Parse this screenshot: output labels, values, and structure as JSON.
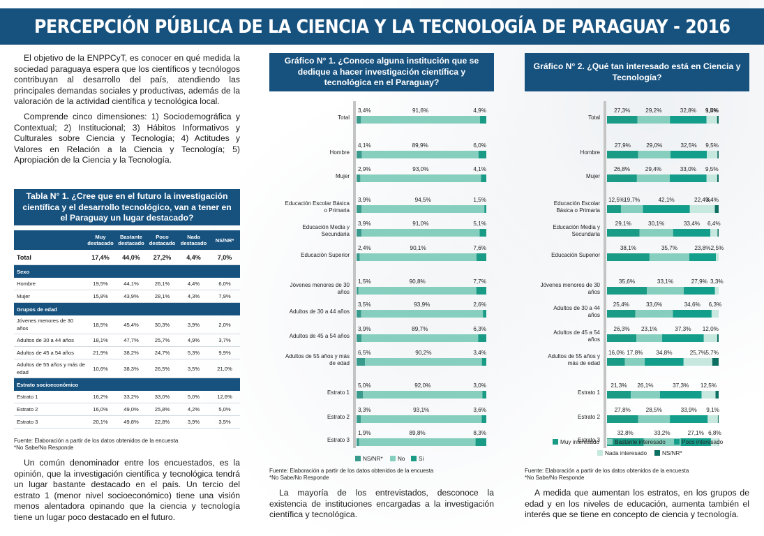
{
  "header": {
    "title": "PERCEPCIÓN PÚBLICA DE LA CIENCIA Y LA TECNOLOGÍA DE PARAGUAY - 2016"
  },
  "intro": {
    "p1": "El objetivo de la ENPPCyT, es conocer en qué medida la sociedad paraguaya espera que los científicos y tecnólogos contribuyan al desarrollo del país, atendiendo las principales demandas sociales y productivas, además de la valoración de la actividad científica y tecnológica local.",
    "p2": "Comprende cinco dimensiones: 1) Sociodemográfica y Contextual; 2) Institucional; 3) Hábitos Informativos y Culturales sobre Ciencia y Tecnología; 4) Actitudes y Valores en Relación a la Ciencia y Tecnología; 5) Apropiación de la Ciencia y la Tecnología."
  },
  "table": {
    "title": "Tabla  N° 1. ¿Cree que en el futuro la investigación científica y el desarrollo tecnológico, van a tener en el Paraguay un lugar destacado?",
    "headers": [
      "Muy destacado",
      "Bastante destacado",
      "Poco destacado",
      "Nada destacado",
      "NS/NR*"
    ],
    "total": {
      "label": "Total",
      "values": [
        "17,4%",
        "44,0%",
        "27,2%",
        "4,4%",
        "7,0%"
      ]
    },
    "sections": [
      {
        "name": "Sexo",
        "rows": [
          {
            "label": "Hombre",
            "values": [
              "19,5%",
              "44,1%",
              "26,1%",
              "4,4%",
              "6,0%"
            ]
          },
          {
            "label": "Mujer",
            "values": [
              "15,8%",
              "43,9%",
              "28,1%",
              "4,3%",
              "7,9%"
            ]
          }
        ]
      },
      {
        "name": "Grupos de edad",
        "rows": [
          {
            "label": "Jóvenes menores de 30 años",
            "values": [
              "18,5%",
              "45,4%",
              "30,3%",
              "3,9%",
              "2,0%"
            ]
          },
          {
            "label": "Adultos de 30 a 44 años",
            "values": [
              "18,1%",
              "47,7%",
              "25,7%",
              "4,9%",
              "3,7%"
            ]
          },
          {
            "label": "Adultos de 45 a 54 años",
            "values": [
              "21,9%",
              "38,2%",
              "24,7%",
              "5,3%",
              "9,9%"
            ]
          },
          {
            "label": "Adultos de 55 años y más de edad",
            "values": [
              "10,6%",
              "38,3%",
              "26,5%",
              "3,5%",
              "21,0%"
            ]
          }
        ]
      },
      {
        "name": "Estrato socioeconómico",
        "rows": [
          {
            "label": "Estrato 1",
            "values": [
              "16,2%",
              "33,2%",
              "33,0%",
              "5,0%",
              "12,6%"
            ]
          },
          {
            "label": "Estrato 2",
            "values": [
              "16,0%",
              "49,0%",
              "25,8%",
              "4,2%",
              "5,0%"
            ]
          },
          {
            "label": "Estrato 3",
            "values": [
              "20,1%",
              "49,8%",
              "22,8%",
              "3,9%",
              "3,5%"
            ]
          }
        ]
      }
    ],
    "source": "Fuente: Elaboración a partir de los datos obtenidos de la encuesta",
    "note": "*No Sabe/No Responde"
  },
  "text_bottom1": "Un común denominador entre los encuestados, es la opinión, que la investigación científica y tecnológica tendrá un lugar bastante destacado en el país. Un tercio del estrato 1 (menor nivel socioeconómico) tiene una visión menos alentadora opinando que la ciencia y tecnología tiene un lugar poco destacado en el futuro.",
  "text_bottom2": "La mayoría de los entrevistados, desconoce la existencia de instituciones encargadas a la investigación científica y tecnológica.",
  "text_bottom3": "A medida que aumentan los estratos, en los grupos de edad y en los niveles de educación, aumenta también el interés que se tiene en concepto de ciencia y tecnología.",
  "chart1_source": "Fuente: Elaboración a partir de los datos obtenidos de la encuesta",
  "chart1_note": "*No Sabe/No Responde",
  "chart2_source": "Fuente: Elaboración a partir de los datos obtenidos de la encuesta",
  "chart2_note": "*No Sabe/No Responde",
  "chart_data": [
    {
      "type": "bar",
      "stacked": true,
      "orientation": "horizontal",
      "title": "Gráfico  N° 1. ¿Conoce alguna institución que se dedique a hacer investigación científica y tecnológica en el Paraguay?",
      "categories": [
        "Total",
        "Hombre",
        "Mujer",
        "Educación Escolar Básica o Primaria",
        "Educación Media y Secundaria",
        "Educación Superior",
        "Jóvenes menores de 30 años",
        "Adultos de 30 a 44 años",
        "Adultos de 45 a 54 años",
        "Adultos de 55 años y más de edad",
        "Estrato 1",
        "Estrato 2",
        "Estrato 3"
      ],
      "series": [
        {
          "name": "NS/NR*",
          "values": [
            3.4,
            4.1,
            2.9,
            3.9,
            3.9,
            2.4,
            1.5,
            3.5,
            3.9,
            6.5,
            5.0,
            3.3,
            1.9
          ],
          "labels": [
            "3,4%",
            "4,1%",
            "2,9%",
            "3,9%",
            "3,9%",
            "2,4%",
            "1,5%",
            "3,5%",
            "3,9%",
            "6,5%",
            "5,0%",
            "3,3%",
            "1,9%"
          ],
          "color": "#3a9a8c"
        },
        {
          "name": "No",
          "values": [
            91.6,
            89.9,
            93.0,
            94.5,
            91.0,
            90.1,
            90.8,
            93.9,
            89.7,
            90.2,
            92.0,
            93.1,
            89.8
          ],
          "labels": [
            "91,6%",
            "89,9%",
            "93,0%",
            "94,5%",
            "91,0%",
            "90,1%",
            "90,8%",
            "93,9%",
            "89,7%",
            "90,2%",
            "92,0%",
            "93,1%",
            "89,8%"
          ],
          "color": "#86cfbe"
        },
        {
          "name": "Si",
          "values": [
            4.9,
            6.0,
            4.1,
            1.5,
            5.1,
            7.6,
            7.7,
            2.6,
            6.3,
            3.4,
            3.0,
            3.6,
            8.3
          ],
          "labels": [
            "4,9%",
            "6,0%",
            "4,1%",
            "1,5%",
            "5,1%",
            "7,6%",
            "7,7%",
            "2,6%",
            "6,3%",
            "3,4%",
            "3,0%",
            "3,6%",
            "8,3%"
          ],
          "color": "#1a9b86"
        }
      ],
      "legend": "bottom"
    },
    {
      "type": "bar",
      "stacked": true,
      "orientation": "horizontal",
      "title": "Gráfico  N° 2. ¿Qué tan interesado está en Ciencia y Tecnología?",
      "categories": [
        "Total",
        "Hombre",
        "Mujer",
        "Educación Escolar Básica o Primaria",
        "Educación Media y Secundaria",
        "Educación Superior",
        "Jóvenes menores de 30 años",
        "Adultos de 30 a 44 años",
        "Adultos de 45 a 54 años",
        "Adultos de 55 años y más de edad",
        "Estrato 1",
        "Estrato 2",
        "Estrato 3"
      ],
      "series": [
        {
          "name": "Muy interesado",
          "values": [
            27.3,
            27.9,
            26.8,
            12.5,
            29.1,
            38.1,
            35.6,
            25.4,
            26.3,
            16.0,
            21.3,
            27.8,
            32.8
          ],
          "labels": [
            "27,3%",
            "27,9%",
            "26,8%",
            "12,5%",
            "29,1%",
            "38,1%",
            "35,6%",
            "25,4%",
            "26,3%",
            "16,0%",
            "21,3%",
            "27,8%",
            "32,8%"
          ],
          "color": "#1a9b86"
        },
        {
          "name": "Bastante interesado",
          "values": [
            29.2,
            29.0,
            29.4,
            19.7,
            30.1,
            35.7,
            33.1,
            33.6,
            23.1,
            17.8,
            26.1,
            28.5,
            33.2
          ],
          "labels": [
            "29,2%",
            "29,0%",
            "29,4%",
            "19,7%",
            "30,1%",
            "35,7%",
            "33,1%",
            "33,6%",
            "23,1%",
            "17,8%",
            "26,1%",
            "28,5%",
            "33,2%"
          ],
          "color": "#86cfbe"
        },
        {
          "name": "Poco interesado",
          "values": [
            32.8,
            32.5,
            33.0,
            42.1,
            33.4,
            23.8,
            27.9,
            34.6,
            37.3,
            34.8,
            37.3,
            33.9,
            27.1
          ],
          "labels": [
            "32,8%",
            "32,5%",
            "33,0%",
            "42,1%",
            "33,4%",
            "23,8%",
            "27,9%",
            "34,6%",
            "37,3%",
            "34,8%",
            "37,3%",
            "33,9%",
            "27,1%"
          ],
          "color": "#129e8a"
        },
        {
          "name": "Nada interesado",
          "values": [
            9.5,
            9.5,
            9.5,
            22.4,
            6.4,
            2.5,
            3.3,
            6.3,
            12.0,
            25.7,
            12.5,
            9.1,
            6.8
          ],
          "labels": [
            "9,5%",
            "9,5%",
            "9,5%",
            "22,4%",
            "6,4%",
            "2,5%",
            "3,3%",
            "6,3%",
            "12,0%",
            "25,7%",
            "12,5%",
            "9,1%",
            "6,8%"
          ],
          "color": "#c7e8df"
        },
        {
          "name": "NS/NR*",
          "values": [
            1.4,
            1.1,
            1.3,
            3.4,
            1.0,
            0.0,
            0.0,
            0.0,
            1.3,
            5.7,
            2.8,
            0.7,
            0.1
          ],
          "labels": [
            "1,4%",
            "",
            "",
            "3,4%",
            "",
            "",
            "",
            "",
            "",
            "5,7%",
            "",
            "",
            ""
          ],
          "color": "#0d6e62"
        }
      ],
      "legend": "bottom"
    }
  ]
}
